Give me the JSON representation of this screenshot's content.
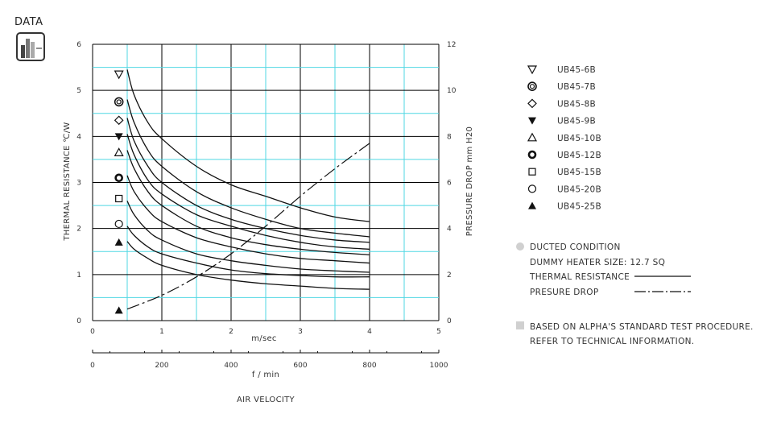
{
  "badge": {
    "label": "DATA"
  },
  "chart_data": {
    "type": "line",
    "x_primary": {
      "label": "m/sec",
      "ticks": [
        "0",
        "1",
        "2",
        "3",
        "4",
        "5"
      ],
      "range": [
        0,
        5
      ]
    },
    "x_secondary": {
      "label": "f / min",
      "ticks": [
        "0",
        "200",
        "400",
        "600",
        "800",
        "1000"
      ],
      "range": [
        0,
        1000
      ]
    },
    "x_caption": "AIR VELOCITY",
    "y_left": {
      "label": "THERMAL  RESISTANCE  ℃/W",
      "ticks": [
        "0",
        "1",
        "2",
        "3",
        "4",
        "5",
        "6"
      ],
      "range": [
        0,
        6
      ]
    },
    "y_right": {
      "label": "PRESSURE  DROP   mm H20",
      "ticks": [
        "0",
        "2",
        "4",
        "6",
        "8",
        "10",
        "12"
      ],
      "range": [
        0,
        12
      ]
    },
    "grid": true,
    "series": [
      {
        "name": "UB45-6B",
        "marker": "triangle-down-open",
        "marker_y": 5.35,
        "x": [
          0.5,
          0.6,
          0.8,
          1.0,
          1.5,
          2.0,
          2.5,
          3.0,
          3.5,
          4.0
        ],
        "y": [
          5.45,
          4.9,
          4.3,
          3.95,
          3.35,
          2.95,
          2.7,
          2.45,
          2.25,
          2.15
        ]
      },
      {
        "name": "UB45-7B",
        "marker": "double-circle",
        "marker_y": 4.75,
        "x": [
          0.5,
          0.6,
          0.8,
          1.0,
          1.5,
          2.0,
          2.5,
          3.0,
          3.5,
          4.0
        ],
        "y": [
          4.8,
          4.3,
          3.7,
          3.35,
          2.8,
          2.45,
          2.2,
          2.0,
          1.9,
          1.82
        ]
      },
      {
        "name": "UB45-8B",
        "marker": "diamond-open",
        "marker_y": 4.35,
        "x": [
          0.5,
          0.6,
          0.8,
          1.0,
          1.5,
          2.0,
          2.5,
          3.0,
          3.5,
          4.0
        ],
        "y": [
          4.4,
          3.9,
          3.35,
          3.0,
          2.5,
          2.2,
          2.0,
          1.85,
          1.75,
          1.7
        ]
      },
      {
        "name": "UB45-9B",
        "marker": "triangle-down-filled",
        "marker_y": 4.0,
        "x": [
          0.5,
          0.6,
          0.8,
          1.0,
          1.5,
          2.0,
          2.5,
          3.0,
          3.5,
          4.0
        ],
        "y": [
          4.05,
          3.6,
          3.05,
          2.75,
          2.3,
          2.05,
          1.85,
          1.7,
          1.6,
          1.55
        ]
      },
      {
        "name": "UB45-10B",
        "marker": "triangle-up-open",
        "marker_y": 3.65,
        "x": [
          0.5,
          0.6,
          0.8,
          1.0,
          1.5,
          2.0,
          2.5,
          3.0,
          3.5,
          4.0
        ],
        "y": [
          3.7,
          3.3,
          2.8,
          2.5,
          2.05,
          1.8,
          1.65,
          1.55,
          1.48,
          1.43
        ]
      },
      {
        "name": "UB45-12B",
        "marker": "circle-bold",
        "marker_y": 3.1,
        "x": [
          0.5,
          0.6,
          0.8,
          1.0,
          1.5,
          2.0,
          2.5,
          3.0,
          3.5,
          4.0
        ],
        "y": [
          3.15,
          2.8,
          2.4,
          2.15,
          1.8,
          1.6,
          1.45,
          1.35,
          1.3,
          1.25
        ]
      },
      {
        "name": "UB45-15B",
        "marker": "square-open",
        "marker_y": 2.65,
        "x": [
          0.5,
          0.6,
          0.8,
          1.0,
          1.5,
          2.0,
          2.5,
          3.0,
          3.5,
          4.0
        ],
        "y": [
          2.6,
          2.3,
          1.95,
          1.75,
          1.45,
          1.3,
          1.2,
          1.12,
          1.08,
          1.05
        ]
      },
      {
        "name": "UB45-20B",
        "marker": "circle-open",
        "marker_y": 2.1,
        "x": [
          0.5,
          0.6,
          0.8,
          1.0,
          1.5,
          2.0,
          2.5,
          3.0,
          3.5,
          4.0
        ],
        "y": [
          2.05,
          1.85,
          1.6,
          1.45,
          1.25,
          1.1,
          1.02,
          0.98,
          0.95,
          0.95
        ]
      },
      {
        "name": "UB45-25B",
        "marker": "triangle-up-filled",
        "marker_y": 1.7,
        "x": [
          0.5,
          0.6,
          0.8,
          1.0,
          1.5,
          2.0,
          2.5,
          3.0,
          3.5,
          4.0
        ],
        "y": [
          1.72,
          1.55,
          1.35,
          1.2,
          1.0,
          0.88,
          0.8,
          0.75,
          0.7,
          0.68
        ]
      }
    ],
    "pressure_drop": {
      "name": "PRESURE DROP",
      "marker": "triangle-up-filled",
      "marker_y": 0.4,
      "x": [
        0.5,
        1.0,
        1.5,
        2.0,
        2.5,
        3.0,
        3.5,
        4.0
      ],
      "y": [
        0.25,
        0.55,
        0.95,
        1.45,
        2.05,
        2.7,
        3.3,
        3.85
      ]
    }
  },
  "legend": {
    "entries": [
      "UB45-6B",
      "UB45-7B",
      "UB45-8B",
      "UB45-9B",
      "UB45-10B",
      "UB45-12B",
      "UB45-15B",
      "UB45-20B",
      "UB45-25B"
    ],
    "conditions": {
      "title": "DUCTED CONDITION",
      "heater": "DUMMY HEATER SIZE: 12.7 SQ",
      "thermal": "THERMAL RESISTANCE",
      "pressure": "PRESURE DROP"
    },
    "note_line1": "BASED ON ALPHA'S STANDARD TEST PROCEDURE.",
    "note_line2": "REFER TO TECHNICAL INFORMATION."
  },
  "colors": {
    "grid_major": "#000000",
    "grid_minor": "#4fd7e3",
    "curve": "#111111",
    "bullet": "#d0d0d0"
  }
}
